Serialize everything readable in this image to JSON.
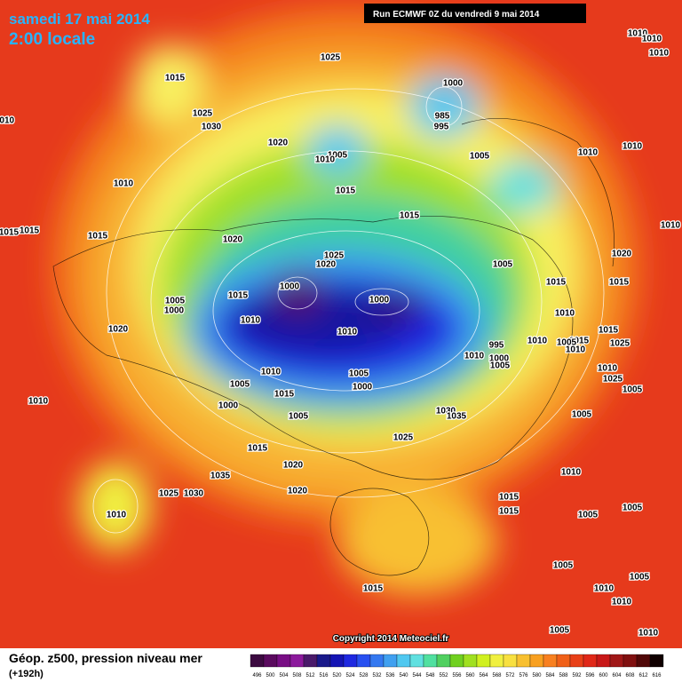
{
  "header": {
    "date": "samedi 17 mai 2014",
    "time": "2:00 locale",
    "run": "Run ECMWF 0Z du vendredi 9 mai 2014"
  },
  "footer": {
    "field": "Géop. z500, pression niveau mer",
    "lead": "(+192h)",
    "copyright": "Copyright 2014 Meteociel.fr"
  },
  "colorbar": {
    "values": [
      "496",
      "500",
      "504",
      "508",
      "512",
      "516",
      "520",
      "524",
      "528",
      "532",
      "536",
      "540",
      "544",
      "548",
      "552",
      "556",
      "560",
      "564",
      "568",
      "572",
      "576",
      "580",
      "584",
      "588",
      "592",
      "596",
      "600",
      "604",
      "608",
      "612",
      "616"
    ],
    "colors": [
      "#3c0a40",
      "#5a0a5e",
      "#780e84",
      "#8c1a9c",
      "#4a1a6a",
      "#1a1a8a",
      "#1414b4",
      "#1e28e0",
      "#2850f0",
      "#3478f0",
      "#40a0f0",
      "#50c8f0",
      "#60e0e0",
      "#50e0a0",
      "#50d060",
      "#70d020",
      "#a0e020",
      "#d0f020",
      "#f0f040",
      "#f8e040",
      "#f8c030",
      "#f8a020",
      "#f88020",
      "#f06018",
      "#e84018",
      "#e02818",
      "#c81818",
      "#a01818",
      "#801010",
      "#500808",
      "#100000"
    ]
  },
  "isobar_labels": [
    "1015",
    "1025",
    "1030",
    "1025",
    "1000",
    "985",
    "995",
    "1020",
    "1005",
    "1010",
    "1015",
    "1005",
    "1010",
    "1010",
    "1010",
    "1015",
    "1015",
    "1015",
    "1015",
    "1020",
    "1025",
    "1020",
    "1005",
    "1020",
    "1000",
    "1000",
    "1015",
    "1005",
    "1000",
    "1015",
    "1015",
    "1010",
    "1010",
    "1020",
    "1010",
    "995",
    "1010",
    "1000",
    "1005",
    "1005",
    "1010",
    "1000",
    "1005",
    "1015",
    "1000",
    "1005",
    "1030",
    "1035",
    "1010",
    "1025",
    "1015",
    "1020",
    "1035",
    "1020",
    "1025",
    "1030",
    "1010",
    "1010",
    "1015",
    "1015",
    "1005",
    "1005",
    "1015",
    "1005",
    "1005",
    "1010",
    "1010",
    "1005",
    "1010",
    "1010",
    "1010",
    "1010",
    "1010",
    "1010",
    "1015",
    "1025",
    "1010",
    "1015",
    "1010",
    "1025",
    "1005",
    "1005",
    "1010",
    "1005"
  ]
}
